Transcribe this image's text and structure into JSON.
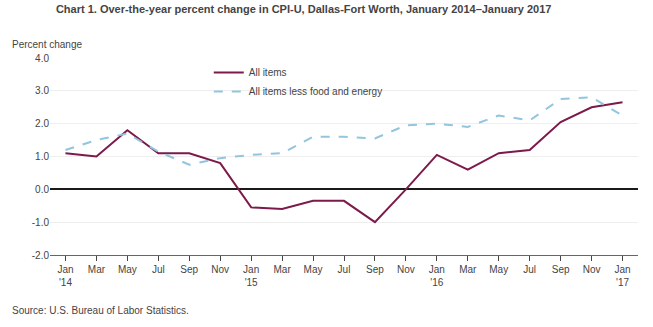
{
  "chart_data": {
    "type": "line",
    "title": "Chart 1. Over-the-year percent change in CPI-U, Dallas-Fort Worth, January 2014–January 2017",
    "ylabel": "Percent change",
    "source": "Source: U.S. Bureau of Labor Statistics.",
    "categories": [
      "Jan\n'14",
      "Mar",
      "May",
      "Jul",
      "Sep",
      "Nov",
      "Jan\n'15",
      "Mar",
      "May",
      "Jul",
      "Sep",
      "Nov",
      "Jan\n'16",
      "Mar",
      "May",
      "Jul",
      "Sep",
      "Nov",
      "Jan\n'17"
    ],
    "series": [
      {
        "name": "All items",
        "color": "#7b1a4b",
        "line_style": "solid",
        "values": [
          1.1,
          1.0,
          1.8,
          1.1,
          1.1,
          0.8,
          -0.55,
          -0.6,
          -0.35,
          -0.35,
          -1.0,
          0.0,
          1.05,
          0.6,
          1.1,
          1.2,
          2.05,
          2.5,
          2.65
        ]
      },
      {
        "name": "All items less food and energy",
        "color": "#92c5de",
        "line_style": "dashed",
        "values": [
          1.2,
          1.5,
          1.7,
          1.15,
          0.75,
          0.95,
          1.05,
          1.1,
          1.6,
          1.6,
          1.55,
          1.95,
          2.0,
          1.9,
          2.25,
          2.1,
          2.75,
          2.8,
          2.25
        ]
      }
    ],
    "ylim": [
      -2.0,
      4.0
    ],
    "yticks": [
      {
        "value": -2.0,
        "label": "-2.0"
      },
      {
        "value": -1.0,
        "label": "-1.0"
      },
      {
        "value": 0.0,
        "label": "0.0"
      },
      {
        "value": 1.0,
        "label": "1.0"
      },
      {
        "value": 2.0,
        "label": "2.0"
      },
      {
        "value": 3.0,
        "label": "3.0"
      },
      {
        "value": 4.0,
        "label": "4.0"
      }
    ],
    "grid": true,
    "legend": "upper left"
  }
}
